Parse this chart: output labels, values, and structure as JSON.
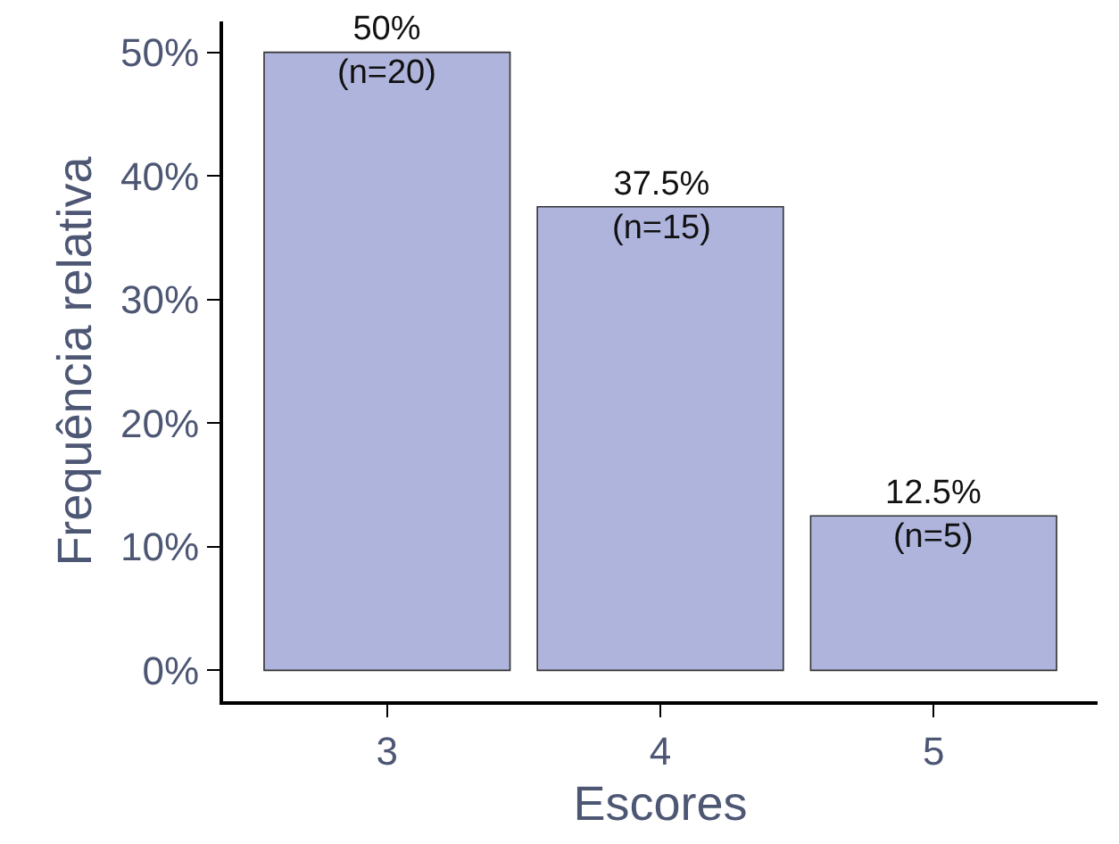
{
  "chart_data": {
    "type": "bar",
    "xlabel": "Escores",
    "ylabel": "Frequência relativa",
    "categories": [
      "3",
      "4",
      "5"
    ],
    "values": [
      50,
      37.5,
      12.5
    ],
    "value_labels": [
      "50%\n(n=20)",
      "37.5%\n(n=15)",
      "12.5%\n(n=5)"
    ],
    "color": "#aeb4dc",
    "ylim": [
      -2.5,
      52.5
    ],
    "yticks": [
      {
        "value": 0,
        "label": "0%"
      },
      {
        "value": 10,
        "label": "10%"
      },
      {
        "value": 20,
        "label": "20%"
      },
      {
        "value": 30,
        "label": "30%"
      },
      {
        "value": 40,
        "label": "40%"
      },
      {
        "value": 50,
        "label": "50%"
      }
    ]
  }
}
